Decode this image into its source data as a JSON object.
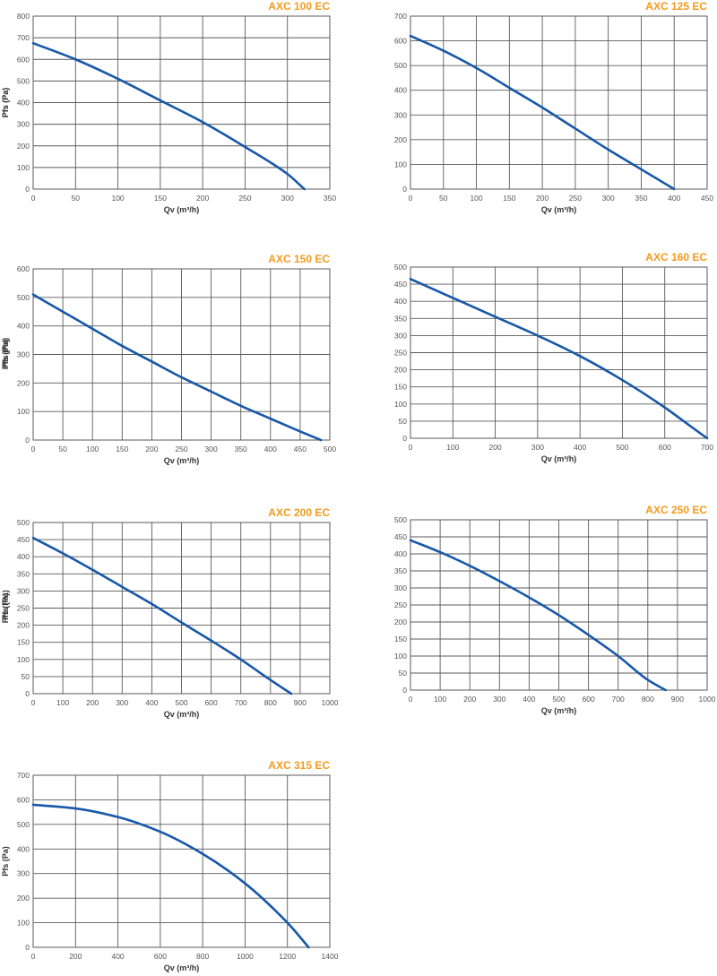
{
  "colors": {
    "title": "#f39a1d",
    "curve": "#1858a8",
    "grid": "#5a5a5a",
    "text": "#555555"
  },
  "chart_data": [
    {
      "type": "line",
      "title": "AXC 100 EC",
      "xlabel": "Qv (m³/h)",
      "ylabel": "Pfs (Pa)",
      "xlim": [
        0,
        350
      ],
      "ylim": [
        0,
        800
      ],
      "x_ticks": [
        "0",
        "50",
        "100",
        "150",
        "200",
        "250",
        "300",
        "350"
      ],
      "y_ticks": [
        "0",
        "100",
        "200",
        "300",
        "400",
        "500",
        "600",
        "700",
        "800"
      ],
      "grid": true,
      "series": [
        {
          "x": [
            0,
            50,
            100,
            150,
            200,
            250,
            300,
            320
          ],
          "y": [
            675,
            600,
            510,
            410,
            310,
            195,
            70,
            0
          ]
        }
      ]
    },
    {
      "type": "line",
      "title": "AXC 125 EC",
      "xlabel": "Qv (m³/h)",
      "ylabel": "Pfs (Pa)",
      "xlim": [
        0,
        450
      ],
      "ylim": [
        0,
        700
      ],
      "x_ticks": [
        "0",
        "50",
        "100",
        "150",
        "200",
        "250",
        "300",
        "350",
        "400",
        "450"
      ],
      "y_ticks": [
        "0",
        "100",
        "200",
        "300",
        "400",
        "500",
        "600",
        "700"
      ],
      "grid": true,
      "series": [
        {
          "x": [
            0,
            50,
            100,
            150,
            200,
            250,
            300,
            350,
            400
          ],
          "y": [
            620,
            560,
            490,
            410,
            330,
            245,
            160,
            80,
            0
          ]
        }
      ]
    },
    {
      "type": "line",
      "title": "AXC 150 EC",
      "xlabel": "Qv (m³/h)",
      "ylabel": "Pfs (Pa)",
      "xlim": [
        0,
        500
      ],
      "ylim": [
        0,
        600
      ],
      "x_ticks": [
        "0",
        "50",
        "100",
        "150",
        "200",
        "250",
        "300",
        "350",
        "400",
        "450",
        "500"
      ],
      "y_ticks": [
        "0",
        "100",
        "200",
        "300",
        "400",
        "500",
        "600"
      ],
      "grid": true,
      "series": [
        {
          "x": [
            0,
            50,
            100,
            150,
            200,
            250,
            300,
            350,
            400,
            450,
            485
          ],
          "y": [
            510,
            450,
            390,
            330,
            275,
            220,
            170,
            120,
            75,
            30,
            0
          ]
        }
      ]
    },
    {
      "type": "line",
      "title": "AXC 160 EC",
      "xlabel": "Qv (m³/h)",
      "ylabel": "Pfs (Pa)",
      "xlim": [
        0,
        700
      ],
      "ylim": [
        0,
        500
      ],
      "x_ticks": [
        "0",
        "100",
        "200",
        "300",
        "400",
        "500",
        "600",
        "700"
      ],
      "y_ticks": [
        "0",
        "50",
        "100",
        "150",
        "200",
        "250",
        "300",
        "350",
        "400",
        "450",
        "500"
      ],
      "grid": true,
      "series": [
        {
          "x": [
            0,
            100,
            200,
            300,
            400,
            500,
            600,
            650,
            700
          ],
          "y": [
            465,
            410,
            355,
            300,
            240,
            170,
            90,
            45,
            0
          ]
        }
      ]
    },
    {
      "type": "line",
      "title": "AXC 200 EC",
      "xlabel": "Qv (m³/h)",
      "ylabel": "Pfs (Pa)",
      "xlim": [
        0,
        1000
      ],
      "ylim": [
        0,
        500
      ],
      "x_ticks": [
        "0",
        "100",
        "200",
        "300",
        "400",
        "500",
        "600",
        "700",
        "800",
        "900",
        "1000"
      ],
      "y_ticks": [
        "0",
        "50",
        "100",
        "150",
        "200",
        "250",
        "300",
        "350",
        "400",
        "450",
        "500"
      ],
      "grid": true,
      "series": [
        {
          "x": [
            0,
            100,
            200,
            300,
            400,
            500,
            600,
            700,
            800,
            870
          ],
          "y": [
            455,
            410,
            362,
            312,
            262,
            208,
            155,
            100,
            40,
            0
          ]
        }
      ]
    },
    {
      "type": "line",
      "title": "AXC 250 EC",
      "xlabel": "Qv (m³/h)",
      "ylabel": "Pfs (Pa)",
      "xlim": [
        0,
        1000
      ],
      "ylim": [
        0,
        500
      ],
      "x_ticks": [
        "0",
        "100",
        "200",
        "300",
        "400",
        "500",
        "600",
        "700",
        "800",
        "900",
        "1000"
      ],
      "y_ticks": [
        "0",
        "50",
        "100",
        "150",
        "200",
        "250",
        "300",
        "350",
        "400",
        "450",
        "500"
      ],
      "grid": true,
      "series": [
        {
          "x": [
            0,
            100,
            200,
            300,
            400,
            500,
            600,
            700,
            800,
            860
          ],
          "y": [
            440,
            405,
            365,
            320,
            272,
            220,
            162,
            100,
            30,
            0
          ]
        }
      ]
    },
    {
      "type": "line",
      "title": "AXC 315 EC",
      "xlabel": "Qv (m³/h)",
      "ylabel": "Pfs (Pa)",
      "xlim": [
        0,
        1400
      ],
      "ylim": [
        0,
        700
      ],
      "x_ticks": [
        "0",
        "200",
        "400",
        "600",
        "800",
        "1000",
        "1200",
        "1400"
      ],
      "y_ticks": [
        "0",
        "100",
        "200",
        "300",
        "400",
        "500",
        "600",
        "700"
      ],
      "grid": true,
      "series": [
        {
          "x": [
            0,
            200,
            400,
            600,
            800,
            1000,
            1200,
            1300
          ],
          "y": [
            580,
            565,
            530,
            470,
            380,
            260,
            100,
            0
          ]
        }
      ]
    }
  ]
}
